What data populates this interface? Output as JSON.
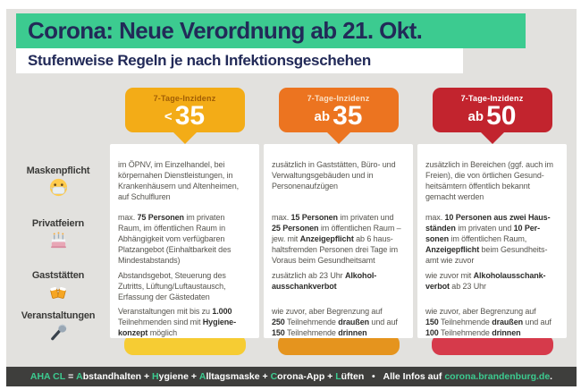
{
  "colors": {
    "canvas": "#FFFFFF",
    "bg": "#E2E1DE",
    "mint": "#3CCB90",
    "navy": "#222A58",
    "text": "#56544E",
    "textBold": "#2E2E2C",
    "labelText": "#3A3A38",
    "footerBg": "#3E3E3C",
    "footerText": "#FFFFFF",
    "badge1": "#F3AC17",
    "badge1Label": "#A05E06",
    "bar1": "#F6CC33",
    "badge2": "#EC7420",
    "badge2Label": "#FADFC5",
    "bar2": "#E5941E",
    "badge3": "#C2242E",
    "badge3Label": "#FFFFFF",
    "bar3": "#D63A4B"
  },
  "header": {
    "title": "Corona: Neue Verordnung ab 21. Okt.",
    "subtitle": "Stufenweise Regeln je nach Infektionsgeschehen"
  },
  "row_labels": [
    {
      "label": "Maskenpflicht",
      "icon": "medical-mask-icon"
    },
    {
      "label": "Privatfeiern",
      "icon": "birthday-cake-icon"
    },
    {
      "label": "Gaststätten",
      "icon": "beer-mugs-icon"
    },
    {
      "label": "Veranstaltungen",
      "icon": "microphone-icon"
    }
  ],
  "columns": [
    {
      "incidence_label": "7-Tage-Inzidenz",
      "prefix": "<",
      "value": "35",
      "rows": [
        "im ÖPNV, im Einzelhandel, bei\nkörpernahen Dienstleistungen, in\nKrankenhäusern und Altenheimen,\nauf Schulfluren",
        "max. **75 Personen** im privaten\nRaum, im öffentlichen Raum in\nAbhängigkeit vom verfügbaren\nPlatzangebot (Einhaltbarkeit des\nMindestabstands)",
        "Abstandsgebot, Steuerung des\nZutritts, Lüftung/Luftaustausch,\nErfassung der Gästedaten",
        "Veranstaltungen mit bis zu **1.000**\nTeilnehmenden sind mit **Hygiene-\nkonzept** möglich"
      ]
    },
    {
      "incidence_label": "7-Tage-Inzidenz",
      "prefix": "ab",
      "value": "35",
      "rows": [
        "zusätzlich in Gaststätten, Büro- und\nVerwaltungsgebäuden und in\nPersonenaufzügen",
        "max. **15 Personen** im privaten und\n**25 Personen** im öffentlichen Raum –\njew. mit **Anzeigepflicht** ab 6 haus-\nhaltsfremden Personen drei Tage im\nVoraus beim Gesundheitsamt",
        "zusätzlich ab 23 Uhr **Alkohol-\nausschankverbot**",
        "wie zuvor, aber Begrenzung auf\n**250** Teilnehmende **draußen** und auf\n**150** Teilnehmende **drinnen**"
      ]
    },
    {
      "incidence_label": "7-Tage-Inzidenz",
      "prefix": "ab",
      "value": "50",
      "rows": [
        "zusätzlich in Bereichen (ggf. auch im\nFreien), die von örtlichen Gesund-\nheitsämtern öffentlich bekannt\ngemacht werden",
        "max. **10 Personen aus zwei Haus-\nständen** im privaten und **10 Per-\nsonen** im öffentlichen Raum,\n**Anzeigepflicht** beim Gesundheits-\namt wie zuvor",
        "wie zuvor mit **Alkoholausschank-\nverbot** ab 23 Uhr",
        "wie zuvor, aber Begrenzung auf\n**150** Teilnehmende **draußen** und auf\n**100** Teilnehmende **drinnen**"
      ]
    }
  ],
  "footer": {
    "segments": [
      {
        "t": "AHA CL",
        "accent": true
      },
      {
        "t": " = "
      },
      {
        "t": "A",
        "accent": true
      },
      {
        "t": "bstandhalten + "
      },
      {
        "t": "H",
        "accent": true
      },
      {
        "t": "ygiene + "
      },
      {
        "t": "A",
        "accent": true
      },
      {
        "t": "lltagsmaske + "
      },
      {
        "t": "C",
        "accent": true
      },
      {
        "t": "orona-App + "
      },
      {
        "t": "L",
        "accent": true
      },
      {
        "t": "üften"
      },
      {
        "t": "   •   "
      },
      {
        "t": "Alle Infos auf "
      },
      {
        "t": "corona.brandenburg.de",
        "accent": true,
        "link": true,
        "name": "footer-link"
      },
      {
        "t": "."
      }
    ]
  }
}
